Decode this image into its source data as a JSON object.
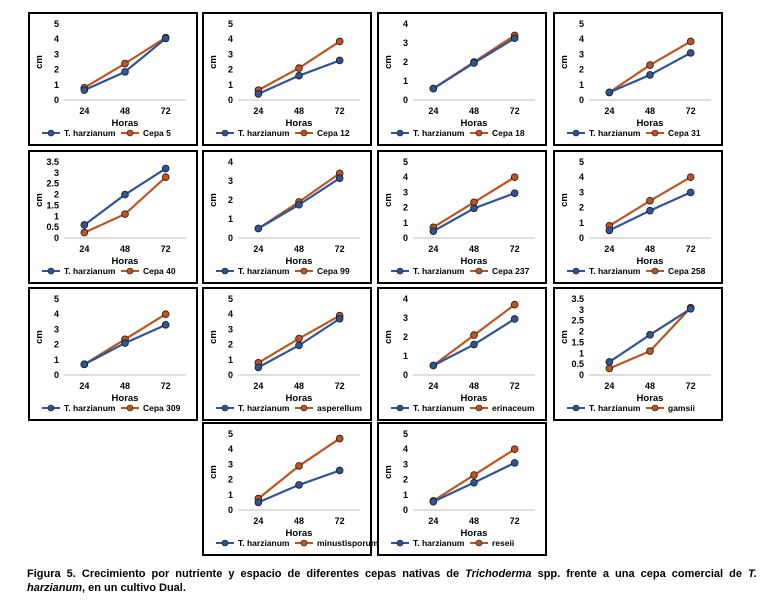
{
  "colors": {
    "series1": "#2e5597",
    "series2": "#c0541e",
    "marker_outline": "#1a1a1a"
  },
  "chart_data": [
    {
      "type": "line",
      "categories": [
        "24",
        "48",
        "72"
      ],
      "ylim": [
        0,
        5
      ],
      "yticks": [
        "0",
        "1",
        "2",
        "3",
        "4",
        "5"
      ],
      "ylabel": "cm",
      "xlabel": "Horas",
      "series": [
        {
          "name": "T. harzianum",
          "values": [
            0.65,
            1.85,
            4.05
          ]
        },
        {
          "name": "Cepa 5",
          "values": [
            0.8,
            2.4,
            4.1
          ]
        }
      ]
    },
    {
      "type": "line",
      "categories": [
        "24",
        "48",
        "72"
      ],
      "ylim": [
        0,
        5
      ],
      "yticks": [
        "0",
        "1",
        "2",
        "3",
        "4",
        "5"
      ],
      "ylabel": "cm",
      "xlabel": "Horas",
      "series": [
        {
          "name": "T. harzianum",
          "values": [
            0.4,
            1.6,
            2.6
          ]
        },
        {
          "name": "Cepa 12",
          "values": [
            0.65,
            2.1,
            3.85
          ]
        }
      ]
    },
    {
      "type": "line",
      "categories": [
        "24",
        "48",
        "72"
      ],
      "ylim": [
        0,
        4
      ],
      "yticks": [
        "0",
        "1",
        "2",
        "3",
        "4"
      ],
      "ylabel": "cm",
      "xlabel": "Horas",
      "series": [
        {
          "name": "T. harzianum",
          "values": [
            0.6,
            1.95,
            3.25
          ]
        },
        {
          "name": "Cepa 18",
          "values": [
            0.6,
            2.0,
            3.4
          ]
        }
      ]
    },
    {
      "type": "line",
      "categories": [
        "24",
        "48",
        "72"
      ],
      "ylim": [
        0,
        5
      ],
      "yticks": [
        "0",
        "1",
        "2",
        "3",
        "4",
        "5"
      ],
      "ylabel": "cm",
      "xlabel": "Horas",
      "series": [
        {
          "name": "T. harzianum",
          "values": [
            0.5,
            1.65,
            3.1
          ]
        },
        {
          "name": "Cepa 31",
          "values": [
            0.5,
            2.3,
            3.85
          ]
        }
      ]
    },
    {
      "type": "line",
      "categories": [
        "24",
        "48",
        "72"
      ],
      "ylim": [
        0,
        3.5
      ],
      "yticks": [
        "0",
        "0.5",
        "1",
        "1.5",
        "2",
        "2.5",
        "3",
        "3.5"
      ],
      "ylabel": "cm",
      "xlabel": "Horas",
      "series": [
        {
          "name": "T. harzianum",
          "values": [
            0.6,
            2.0,
            3.2
          ]
        },
        {
          "name": "Cepa 40",
          "values": [
            0.25,
            1.1,
            2.8
          ]
        }
      ]
    },
    {
      "type": "line",
      "categories": [
        "24",
        "48",
        "72"
      ],
      "ylim": [
        0,
        4
      ],
      "yticks": [
        "0",
        "1",
        "2",
        "3",
        "4"
      ],
      "ylabel": "cm",
      "xlabel": "Horas",
      "series": [
        {
          "name": "T. harzianum",
          "values": [
            0.5,
            1.75,
            3.15
          ]
        },
        {
          "name": "Cepa 99",
          "values": [
            0.5,
            1.9,
            3.4
          ]
        }
      ]
    },
    {
      "type": "line",
      "categories": [
        "24",
        "48",
        "72"
      ],
      "ylim": [
        0,
        5
      ],
      "yticks": [
        "0",
        "1",
        "2",
        "3",
        "4",
        "5"
      ],
      "ylabel": "cm",
      "xlabel": "Horas",
      "series": [
        {
          "name": "T. harzianum",
          "values": [
            0.45,
            1.95,
            2.95
          ]
        },
        {
          "name": "Cepa 237",
          "values": [
            0.7,
            2.35,
            4.0
          ]
        }
      ]
    },
    {
      "type": "line",
      "categories": [
        "24",
        "48",
        "72"
      ],
      "ylim": [
        0,
        5
      ],
      "yticks": [
        "0",
        "1",
        "2",
        "3",
        "4",
        "5"
      ],
      "ylabel": "cm",
      "xlabel": "Horas",
      "series": [
        {
          "name": "T. harzianum",
          "values": [
            0.5,
            1.8,
            3.0
          ]
        },
        {
          "name": "Cepa 258",
          "values": [
            0.8,
            2.45,
            4.0
          ]
        }
      ]
    },
    {
      "type": "line",
      "categories": [
        "24",
        "48",
        "72"
      ],
      "ylim": [
        0,
        5
      ],
      "yticks": [
        "0",
        "1",
        "2",
        "3",
        "4",
        "5"
      ],
      "ylabel": "cm",
      "xlabel": "Horas",
      "series": [
        {
          "name": "T. harzianum",
          "values": [
            0.7,
            2.1,
            3.3
          ]
        },
        {
          "name": "Cepa 309",
          "values": [
            0.7,
            2.35,
            4.0
          ]
        }
      ]
    },
    {
      "type": "line",
      "categories": [
        "24",
        "48",
        "72"
      ],
      "ylim": [
        0,
        5
      ],
      "yticks": [
        "0",
        "1",
        "2",
        "3",
        "4",
        "5"
      ],
      "ylabel": "cm",
      "xlabel": "Horas",
      "series": [
        {
          "name": "T. harzianum",
          "values": [
            0.5,
            1.95,
            3.7
          ]
        },
        {
          "name": "asperellum",
          "values": [
            0.8,
            2.4,
            3.9
          ]
        }
      ]
    },
    {
      "type": "line",
      "categories": [
        "24",
        "48",
        "72"
      ],
      "ylim": [
        0,
        4
      ],
      "yticks": [
        "0",
        "1",
        "2",
        "3",
        "4"
      ],
      "ylabel": "cm",
      "xlabel": "Horas",
      "series": [
        {
          "name": "T. harzianum",
          "values": [
            0.5,
            1.6,
            2.95
          ]
        },
        {
          "name": "erinaceum",
          "values": [
            0.5,
            2.1,
            3.7
          ]
        }
      ]
    },
    {
      "type": "line",
      "categories": [
        "24",
        "48",
        "72"
      ],
      "ylim": [
        0,
        3.5
      ],
      "yticks": [
        "0",
        "0.5",
        "1",
        "1.5",
        "2",
        "2.5",
        "3",
        "3.5"
      ],
      "ylabel": "cm",
      "xlabel": "Horas",
      "series": [
        {
          "name": "T. harzianum",
          "values": [
            0.6,
            1.85,
            3.05
          ]
        },
        {
          "name": "gamsii",
          "values": [
            0.3,
            1.1,
            3.1
          ]
        }
      ]
    },
    {
      "type": "line",
      "categories": [
        "24",
        "48",
        "72"
      ],
      "ylim": [
        0,
        5
      ],
      "yticks": [
        "0",
        "1",
        "2",
        "3",
        "4",
        "5"
      ],
      "ylabel": "cm",
      "xlabel": "Horas",
      "series": [
        {
          "name": "T. harzianum",
          "values": [
            0.5,
            1.65,
            2.6
          ]
        },
        {
          "name": "minustisporum",
          "values": [
            0.75,
            2.9,
            4.7
          ]
        }
      ]
    },
    {
      "type": "line",
      "categories": [
        "24",
        "48",
        "72"
      ],
      "ylim": [
        0,
        5
      ],
      "yticks": [
        "0",
        "1",
        "2",
        "3",
        "4",
        "5"
      ],
      "ylabel": "cm",
      "xlabel": "Horas",
      "series": [
        {
          "name": "T. harzianum",
          "values": [
            0.55,
            1.8,
            3.1
          ]
        },
        {
          "name": "reseii",
          "values": [
            0.6,
            2.3,
            4.0
          ]
        }
      ]
    }
  ],
  "caption": {
    "label": "Figura 5.",
    "text1": " Crecimiento por nutriente y espacio de diferentes cepas nativas de ",
    "genus": "Trichoderma",
    "text2": " spp. frente a una cepa comercial de ",
    "species": "T. harzianum",
    "text3": ", en un cultivo Dual."
  }
}
